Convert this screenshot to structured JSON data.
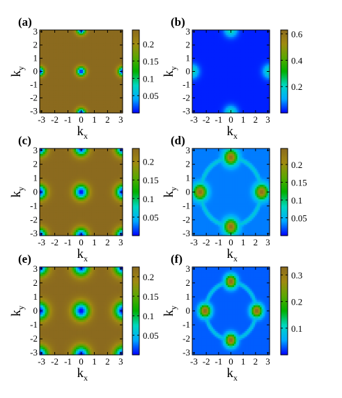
{
  "chart_data": [
    {
      "panel_label": "(a)",
      "type": "heatmap",
      "xlabel_base": "k",
      "xlabel_sub": "x",
      "ylabel_base": "k",
      "ylabel_sub": "y",
      "xticks": [
        "-3",
        "-2",
        "-1",
        "0",
        "1",
        "2",
        "3"
      ],
      "yticks": [
        "-3",
        "-2",
        "-1",
        "0",
        "1",
        "2",
        "3"
      ],
      "xlim": [
        -3.14,
        3.14
      ],
      "ylim": [
        -3.14,
        3.14
      ],
      "colorbar_ticks": [
        "0.2",
        "0.15",
        "0.1",
        "0.05"
      ],
      "colorbar_values": [
        0.2,
        0.15,
        0.1,
        0.05
      ],
      "colorbar_range": [
        0.0,
        0.24
      ],
      "colormap": [
        "#0000ff",
        "#00aaff",
        "#00d8c0",
        "#00b000",
        "#5aa800",
        "#a08a10",
        "#8b6a1e"
      ],
      "pattern": "peaks",
      "peak_centers": [
        [
          0,
          0
        ],
        [
          3.14,
          0
        ],
        [
          -3.14,
          0
        ],
        [
          0,
          3.14
        ],
        [
          0,
          -3.14
        ]
      ],
      "background_value": 0.24,
      "peak_value": 0.0,
      "peak_radius": 0.25
    },
    {
      "panel_label": "(b)",
      "type": "heatmap",
      "xlabel_base": "k",
      "xlabel_sub": "x",
      "ylabel_base": "k",
      "ylabel_sub": "y",
      "xticks": [
        "-3",
        "-2",
        "-1",
        "0",
        "1",
        "2",
        "3"
      ],
      "yticks": [
        "-3",
        "-2",
        "-1",
        "0",
        "1",
        "2",
        "3"
      ],
      "xlim": [
        -3.14,
        3.14
      ],
      "ylim": [
        -3.14,
        3.14
      ],
      "colorbar_ticks": [
        "0.6",
        "0.4",
        "0.2"
      ],
      "colorbar_values": [
        0.6,
        0.4,
        0.2
      ],
      "colorbar_range": [
        0.0,
        0.63
      ],
      "colormap": [
        "#0000ff",
        "#00aaff",
        "#00d8c0",
        "#00b000",
        "#5aa800",
        "#a08a10",
        "#8b6a1e"
      ],
      "pattern": "edge_spots",
      "peak_centers": [
        [
          0,
          3.14
        ],
        [
          0,
          -3.14
        ],
        [
          3.14,
          0
        ],
        [
          -3.14,
          0
        ]
      ],
      "background_value": 0.02,
      "peak_value": 0.22,
      "peak_radius": 0.35
    },
    {
      "panel_label": "(c)",
      "type": "heatmap",
      "xlabel_base": "k",
      "xlabel_sub": "x",
      "ylabel_base": "k",
      "ylabel_sub": "y",
      "xticks": [
        "-3",
        "-2",
        "-1",
        "0",
        "1",
        "2",
        "3"
      ],
      "yticks": [
        "-3",
        "-2",
        "-1",
        "0",
        "1",
        "2",
        "3"
      ],
      "xlim": [
        -3.14,
        3.14
      ],
      "ylim": [
        -3.14,
        3.14
      ],
      "colorbar_ticks": [
        "0.2",
        "0.15",
        "0.1",
        "0.05"
      ],
      "colorbar_values": [
        0.2,
        0.15,
        0.1,
        0.05
      ],
      "colorbar_range": [
        0.0,
        0.235
      ],
      "colormap": [
        "#0000ff",
        "#00aaff",
        "#00d8c0",
        "#00b000",
        "#5aa800",
        "#a08a10",
        "#8b6a1e"
      ],
      "pattern": "peaks",
      "peak_centers": [
        [
          0,
          0
        ],
        [
          3.14,
          0
        ],
        [
          -3.14,
          0
        ],
        [
          0,
          3.14
        ],
        [
          0,
          -3.14
        ],
        [
          3.14,
          3.14
        ],
        [
          -3.14,
          3.14
        ],
        [
          3.14,
          -3.14
        ],
        [
          -3.14,
          -3.14
        ]
      ],
      "background_value": 0.235,
      "peak_value": 0.0,
      "peak_radius": 0.38
    },
    {
      "panel_label": "(d)",
      "type": "heatmap",
      "xlabel_base": "k",
      "xlabel_sub": "x",
      "ylabel_base": "k",
      "ylabel_sub": "y",
      "xticks": [
        "-3",
        "-2",
        "-1",
        "0",
        "1",
        "2",
        "3"
      ],
      "yticks": [
        "-3",
        "-2",
        "-1",
        "0",
        "1",
        "2",
        "3"
      ],
      "xlim": [
        -3.14,
        3.14
      ],
      "ylim": [
        -3.14,
        3.14
      ],
      "colorbar_ticks": [
        "0.2",
        "0.15",
        "0.1",
        "0.05"
      ],
      "colorbar_values": [
        0.2,
        0.15,
        0.1,
        0.05
      ],
      "colorbar_range": [
        0.0,
        0.245
      ],
      "colormap": [
        "#0000ff",
        "#00aaff",
        "#00d8c0",
        "#00b000",
        "#5aa800",
        "#a08a10",
        "#8b6a1e"
      ],
      "pattern": "ring",
      "peak_centers": [
        [
          0,
          2.5
        ],
        [
          0,
          -2.5
        ],
        [
          2.5,
          0
        ],
        [
          -2.5,
          0
        ]
      ],
      "ring_radius": 2.45,
      "background_value": 0.03,
      "peak_value": 0.24,
      "peak_radius": 0.35
    },
    {
      "panel_label": "(e)",
      "type": "heatmap",
      "xlabel_base": "k",
      "xlabel_sub": "x",
      "ylabel_base": "k",
      "ylabel_sub": "y",
      "xticks": [
        "-3",
        "-2",
        "-1",
        "0",
        "1",
        "2",
        "3"
      ],
      "yticks": [
        "-3",
        "-2",
        "-1",
        "0",
        "1",
        "2",
        "3"
      ],
      "xlim": [
        -3.14,
        3.14
      ],
      "ylim": [
        -3.14,
        3.14
      ],
      "colorbar_ticks": [
        "0.2",
        "0.15",
        "0.1",
        "0.05"
      ],
      "colorbar_values": [
        0.2,
        0.15,
        0.1,
        0.05
      ],
      "colorbar_range": [
        0.0,
        0.225
      ],
      "colormap": [
        "#0000ff",
        "#00aaff",
        "#00d8c0",
        "#00b000",
        "#5aa800",
        "#a08a10",
        "#8b6a1e"
      ],
      "pattern": "peaks",
      "peak_centers": [
        [
          0,
          0
        ],
        [
          3.14,
          0
        ],
        [
          -3.14,
          0
        ],
        [
          0,
          3.14
        ],
        [
          0,
          -3.14
        ],
        [
          3.14,
          3.14
        ],
        [
          -3.14,
          3.14
        ],
        [
          3.14,
          -3.14
        ],
        [
          -3.14,
          -3.14
        ]
      ],
      "background_value": 0.225,
      "peak_value": 0.0,
      "peak_radius": 0.45
    },
    {
      "panel_label": "(f)",
      "type": "heatmap",
      "xlabel_base": "k",
      "xlabel_sub": "x",
      "ylabel_base": "k",
      "ylabel_sub": "y",
      "xticks": [
        "-3",
        "-2",
        "-1",
        "0",
        "1",
        "2",
        "3"
      ],
      "yticks": [
        "-3",
        "-2",
        "-1",
        "0",
        "1",
        "2",
        "3"
      ],
      "xlim": [
        -3.14,
        3.14
      ],
      "ylim": [
        -3.14,
        3.14
      ],
      "colorbar_ticks": [
        "0.3",
        "0.2",
        "0.1"
      ],
      "colorbar_values": [
        0.3,
        0.2,
        0.1
      ],
      "colorbar_range": [
        0.0,
        0.33
      ],
      "colormap": [
        "#0000ff",
        "#00aaff",
        "#00d8c0",
        "#00b000",
        "#5aa800",
        "#a08a10",
        "#8b6a1e"
      ],
      "pattern": "ring",
      "peak_centers": [
        [
          0,
          2.1
        ],
        [
          0,
          -2.1
        ],
        [
          2.1,
          0
        ],
        [
          -2.1,
          0
        ]
      ],
      "ring_radius": 2.05,
      "background_value": 0.03,
      "peak_value": 0.33,
      "peak_radius": 0.3
    }
  ]
}
